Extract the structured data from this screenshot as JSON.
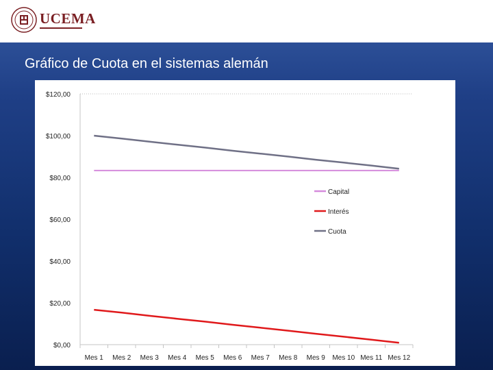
{
  "header": {
    "logo_text": "UCEMA",
    "seal_text": "UCEMA"
  },
  "slide": {
    "title": "Gráfico de Cuota en el sistemas alemán"
  },
  "colors": {
    "capital": "#d58bdc",
    "interes": "#e0191b",
    "cuota": "#6f7086",
    "brand": "#7a1f23"
  },
  "chart_data": {
    "type": "line",
    "title": "",
    "xlabel": "",
    "ylabel": "",
    "ylim": [
      0,
      120
    ],
    "yticks": [
      0,
      20,
      40,
      60,
      80,
      100,
      120
    ],
    "ytick_labels": [
      "$0,00",
      "$20,00",
      "$40,00",
      "$60,00",
      "$80,00",
      "$100,00",
      "$120,00"
    ],
    "categories": [
      "Mes 1",
      "Mes 2",
      "Mes 3",
      "Mes 4",
      "Mes 5",
      "Mes 6",
      "Mes 7",
      "Mes 8",
      "Mes 9",
      "Mes 10",
      "Mes 11",
      "Mes 12"
    ],
    "legend_position": "right",
    "series": [
      {
        "name": "Capital",
        "color": "#d58bdc",
        "values": [
          83.3,
          83.3,
          83.3,
          83.3,
          83.3,
          83.3,
          83.3,
          83.3,
          83.3,
          83.3,
          83.3,
          83.3
        ]
      },
      {
        "name": "Interés",
        "color": "#e0191b",
        "values": [
          16.7,
          15.3,
          13.8,
          12.4,
          11.0,
          9.5,
          8.1,
          6.7,
          5.2,
          3.8,
          2.4,
          0.9
        ]
      },
      {
        "name": "Cuota",
        "color": "#6f7086",
        "values": [
          100.0,
          98.6,
          97.1,
          95.7,
          94.3,
          92.8,
          91.4,
          90.0,
          88.5,
          87.1,
          85.7,
          84.2
        ]
      }
    ]
  }
}
